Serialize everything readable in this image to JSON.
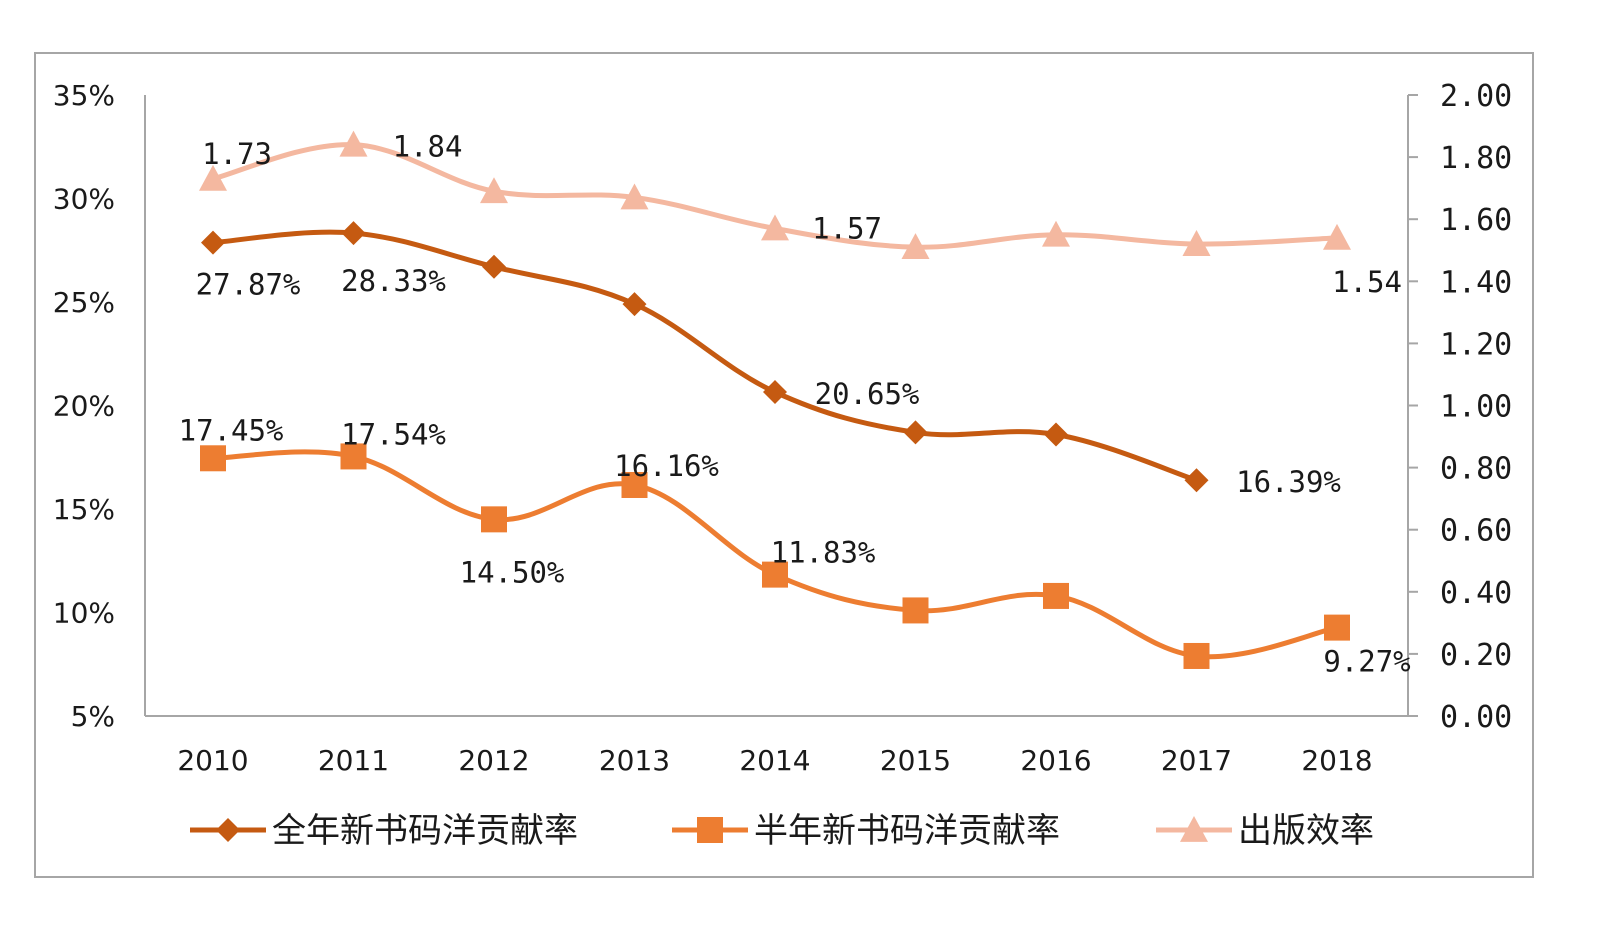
{
  "chart_data": {
    "type": "line",
    "title": "",
    "x": [
      "2010",
      "2011",
      "2012",
      "2013",
      "2014",
      "2015",
      "2016",
      "2017",
      "2018"
    ],
    "y_left": {
      "ticks": [
        "35%",
        "30%",
        "25%",
        "20%",
        "15%",
        "10%",
        "5%"
      ],
      "min": 5,
      "max": 35
    },
    "y_right": {
      "ticks": [
        "2.00",
        "1.80",
        "1.60",
        "1.40",
        "1.20",
        "1.00",
        "0.80",
        "0.60",
        "0.40",
        "0.20",
        "0.00"
      ],
      "min": 0,
      "max": 2
    },
    "grid": false,
    "legend_position": "bottom",
    "series": [
      {
        "name": "全年新书码洋贡献率",
        "axis": "left",
        "marker": "diamond",
        "color": "#c55a11",
        "values": [
          27.87,
          28.33,
          26.7,
          24.9,
          20.65,
          18.7,
          18.6,
          16.39,
          null
        ],
        "labels": [
          "27.87%",
          "28.33%",
          "",
          "",
          "20.65%",
          "",
          "",
          "16.39%",
          ""
        ]
      },
      {
        "name": "半年新书码洋贡献率",
        "axis": "left",
        "marker": "square",
        "color": "#ed7d31",
        "values": [
          17.45,
          17.54,
          14.5,
          16.16,
          11.83,
          10.1,
          10.8,
          7.9,
          9.27
        ],
        "labels": [
          "17.45%",
          "17.54%",
          "14.50%",
          "16.16%",
          "11.83%",
          "",
          "",
          "",
          "9.27%"
        ]
      },
      {
        "name": "出版效率",
        "axis": "right",
        "marker": "triangle",
        "color": "#f4b8a0",
        "values": [
          1.73,
          1.84,
          1.69,
          1.67,
          1.57,
          1.51,
          1.55,
          1.52,
          1.54
        ],
        "labels": [
          "1.73",
          "1.84",
          "",
          "",
          "1.57",
          "",
          "",
          "",
          "1.54"
        ]
      }
    ]
  }
}
